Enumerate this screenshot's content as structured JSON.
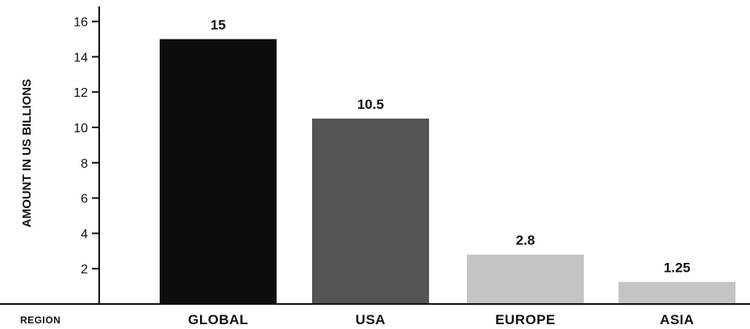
{
  "chart_data": {
    "type": "bar",
    "categories": [
      "GLOBAL",
      "USA",
      "EUROPE",
      "ASIA"
    ],
    "values": [
      15,
      10.5,
      2.8,
      1.25
    ],
    "value_labels": [
      "15",
      "10.5",
      "2.8",
      "1.25"
    ],
    "colors": [
      "#0d0d0d",
      "#555555",
      "#c4c4c4",
      "#c4c4c4"
    ],
    "title": "",
    "xlabel": "REGION",
    "ylabel": "AMOUNT IN US BILLIONS",
    "ylim": [
      0,
      17
    ],
    "yticks": [
      2,
      4,
      6,
      8,
      10,
      12,
      14,
      16
    ],
    "ytick_labels": [
      "2",
      "4",
      "6",
      "8",
      "10",
      "12",
      "14",
      "16"
    ],
    "grid": false
  }
}
